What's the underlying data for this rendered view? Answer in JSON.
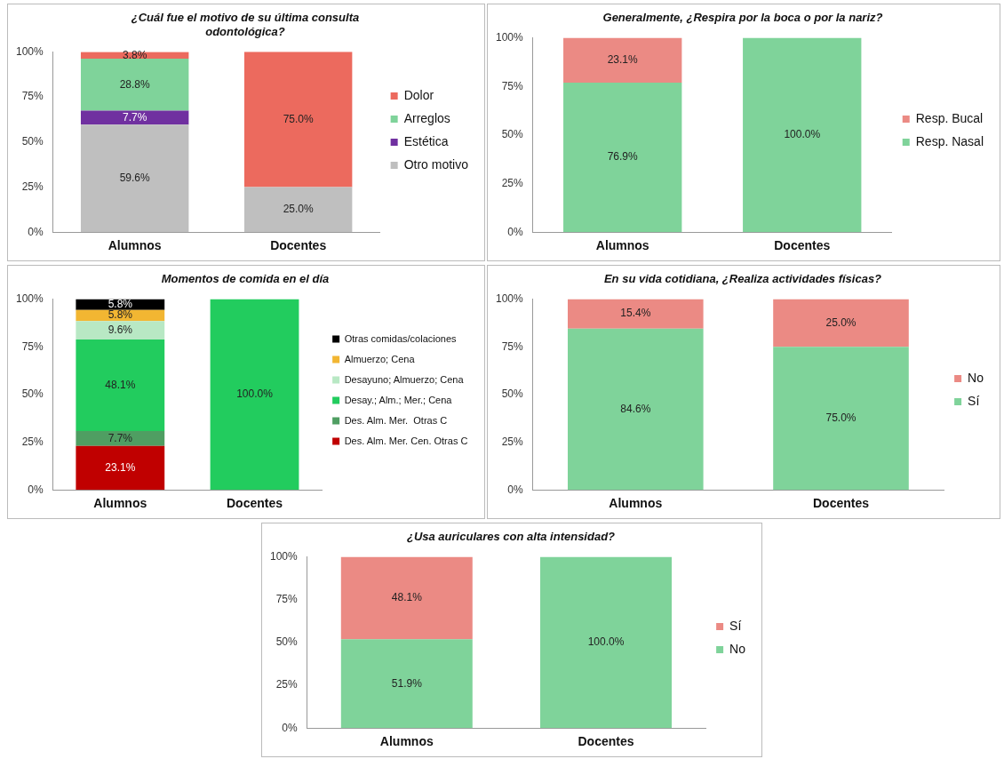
{
  "chart_data": [
    {
      "type": "bar",
      "title": "¿Cuál fue el motivo de su última consulta odontológica?",
      "categories": [
        "Alumnos",
        "Docentes"
      ],
      "stacked": true,
      "legend": "right",
      "grid": false,
      "ylim": [
        0,
        100
      ],
      "yticks": [
        {
          "value": 0,
          "label": "0%"
        },
        {
          "value": 25,
          "label": "25%"
        },
        {
          "value": 50,
          "label": "50%"
        },
        {
          "value": 75,
          "label": "75%"
        },
        {
          "value": 100,
          "label": "100%"
        }
      ],
      "series": [
        {
          "name": "Otro motivo",
          "color": "#bfbfbf",
          "values": [
            59.6,
            25.0
          ],
          "value_labels": [
            "59.6%",
            "25.0%"
          ]
        },
        {
          "name": "Estética",
          "color": "#7030a0",
          "values": [
            7.7,
            null
          ],
          "value_labels": [
            "7.7%",
            null
          ]
        },
        {
          "name": "Arreglos",
          "color": "#7fd39a",
          "values": [
            28.8,
            null
          ],
          "value_labels": [
            "28.8%",
            null
          ]
        },
        {
          "name": "Dolor",
          "color": "#ec6a5e",
          "values": [
            3.8,
            75.0
          ],
          "value_labels": [
            "3.8%",
            "75.0%"
          ]
        }
      ]
    },
    {
      "type": "bar",
      "title": "Generalmente, ¿Respira por la boca o por la nariz?",
      "categories": [
        "Alumnos",
        "Docentes"
      ],
      "stacked": true,
      "legend": "right",
      "grid": false,
      "ylim": [
        0,
        100
      ],
      "yticks": [
        {
          "value": 0,
          "label": "0%"
        },
        {
          "value": 25,
          "label": "25%"
        },
        {
          "value": 50,
          "label": "50%"
        },
        {
          "value": 75,
          "label": "75%"
        },
        {
          "value": 100,
          "label": "100%"
        }
      ],
      "series": [
        {
          "name": "Resp. Nasal",
          "color": "#7fd39a",
          "values": [
            76.9,
            100.0
          ],
          "value_labels": [
            "76.9%",
            "100.0%"
          ]
        },
        {
          "name": "Resp. Bucal",
          "color": "#eb8a84",
          "values": [
            23.1,
            null
          ],
          "value_labels": [
            "23.1%",
            null
          ]
        }
      ]
    },
    {
      "type": "bar",
      "title": "Momentos de comida en el día",
      "categories": [
        "Alumnos",
        "Docentes"
      ],
      "stacked": true,
      "legend": "right",
      "grid": false,
      "ylim": [
        0,
        100
      ],
      "yticks": [
        {
          "value": 0,
          "label": "0%"
        },
        {
          "value": 25,
          "label": "25%"
        },
        {
          "value": 50,
          "label": "50%"
        },
        {
          "value": 75,
          "label": "75%"
        },
        {
          "value": 100,
          "label": "100%"
        }
      ],
      "series": [
        {
          "name": "Des. Alm. Mer. Cen. Otras C",
          "color": "#c00000",
          "values": [
            23.1,
            null
          ],
          "value_labels": [
            "23.1%",
            null
          ]
        },
        {
          "name": "Des. Alm. Mer.  Otras C",
          "color": "#4f9e62",
          "values": [
            7.7,
            null
          ],
          "value_labels": [
            "7.7%",
            null
          ]
        },
        {
          "name": "Desay.; Alm.; Mer.; Cena",
          "color": "#22cc5e",
          "values": [
            48.1,
            100.0
          ],
          "value_labels": [
            "48.1%",
            "100.0%"
          ]
        },
        {
          "name": "Desayuno; Almuerzo; Cena",
          "color": "#b8e8c4",
          "values": [
            9.6,
            null
          ],
          "value_labels": [
            "9.6%",
            null
          ]
        },
        {
          "name": "Almuerzo; Cena",
          "color": "#f2b632",
          "values": [
            5.8,
            null
          ],
          "value_labels": [
            "5.8%",
            null
          ]
        },
        {
          "name": "Otras comidas/colaciones",
          "color": "#000000",
          "values": [
            5.8,
            null
          ],
          "value_labels": [
            "5.8%",
            null
          ]
        }
      ]
    },
    {
      "type": "bar",
      "title": "En su vida cotidiana, ¿Realiza actividades físicas?",
      "categories": [
        "Alumnos",
        "Docentes"
      ],
      "stacked": true,
      "legend": "right",
      "grid": false,
      "ylim": [
        0,
        100
      ],
      "yticks": [
        {
          "value": 0,
          "label": "0%"
        },
        {
          "value": 25,
          "label": "25%"
        },
        {
          "value": 50,
          "label": "50%"
        },
        {
          "value": 75,
          "label": "75%"
        },
        {
          "value": 100,
          "label": "100%"
        }
      ],
      "series": [
        {
          "name": "Sí",
          "color": "#7fd39a",
          "values": [
            84.6,
            75.0
          ],
          "value_labels": [
            "84.6%",
            "75.0%"
          ]
        },
        {
          "name": "No",
          "color": "#eb8a84",
          "values": [
            15.4,
            25.0
          ],
          "value_labels": [
            "15.4%",
            "25.0%"
          ]
        }
      ]
    },
    {
      "type": "bar",
      "title": "¿Usa auriculares con alta intensidad?",
      "categories": [
        "Alumnos",
        "Docentes"
      ],
      "stacked": true,
      "legend": "right",
      "grid": false,
      "ylim": [
        0,
        100
      ],
      "yticks": [
        {
          "value": 0,
          "label": "0%"
        },
        {
          "value": 25,
          "label": "25%"
        },
        {
          "value": 50,
          "label": "50%"
        },
        {
          "value": 75,
          "label": "75%"
        },
        {
          "value": 100,
          "label": "100%"
        }
      ],
      "series": [
        {
          "name": "No",
          "color": "#7fd39a",
          "values": [
            51.9,
            100.0
          ],
          "value_labels": [
            "51.9%",
            "100.0%"
          ]
        },
        {
          "name": "Sí",
          "color": "#eb8a84",
          "values": [
            48.1,
            null
          ],
          "value_labels": [
            "48.1%",
            null
          ]
        }
      ]
    }
  ]
}
